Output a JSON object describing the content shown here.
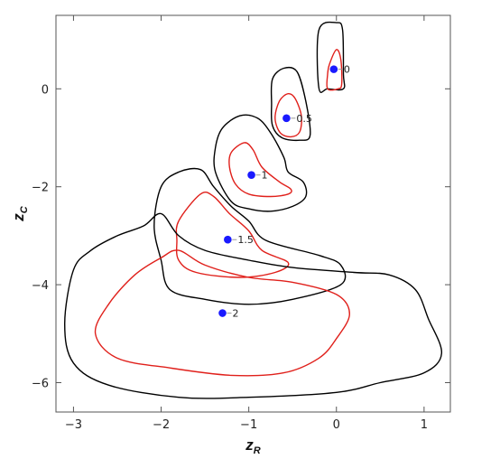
{
  "chart_data": {
    "type": "contour-scatter",
    "xlabel": {
      "main": "z",
      "sub": "R"
    },
    "ylabel": {
      "main": "z",
      "sub": "C"
    },
    "xlim": [
      -3.2,
      1.3
    ],
    "ylim": [
      -6.6,
      1.5
    ],
    "xticks": [
      -3,
      -2,
      -1,
      0,
      1
    ],
    "yticks": [
      -6,
      -4,
      -2,
      0
    ],
    "colors": {
      "outer": "#000000",
      "inner": "#e0201b",
      "point": "#1a1aff"
    },
    "points": [
      {
        "label": "0",
        "x": -0.03,
        "y": 0.4
      },
      {
        "label": "0.5",
        "x": -0.57,
        "y": -0.6
      },
      {
        "label": "1",
        "x": -0.97,
        "y": -1.76
      },
      {
        "label": "1.5",
        "x": -1.24,
        "y": -3.08
      },
      {
        "label": "2",
        "x": -1.3,
        "y": -4.58
      }
    ],
    "contours": [
      {
        "level": "outer",
        "group": "0",
        "points": [
          [
            -0.2,
            1.2
          ],
          [
            0.0,
            1.35
          ],
          [
            0.07,
            1.2
          ],
          [
            0.08,
            0.3
          ],
          [
            0.08,
            0.0
          ],
          [
            -0.1,
            0.0
          ],
          [
            -0.2,
            0.02
          ],
          [
            -0.2,
            1.2
          ]
        ]
      },
      {
        "level": "inner",
        "group": "0",
        "points": [
          [
            -0.08,
            0.5
          ],
          [
            0.0,
            0.8
          ],
          [
            0.05,
            0.6
          ],
          [
            0.06,
            0.1
          ],
          [
            0.02,
            0.0
          ],
          [
            -0.1,
            0.0
          ],
          [
            -0.1,
            0.3
          ],
          [
            -0.08,
            0.5
          ]
        ]
      },
      {
        "level": "outer",
        "group": "0.5",
        "points": [
          [
            -0.73,
            0.2
          ],
          [
            -0.6,
            0.42
          ],
          [
            -0.45,
            0.35
          ],
          [
            -0.35,
            -0.25
          ],
          [
            -0.3,
            -0.95
          ],
          [
            -0.42,
            -1.05
          ],
          [
            -0.62,
            -1.0
          ],
          [
            -0.73,
            -0.75
          ],
          [
            -0.74,
            -0.3
          ],
          [
            -0.73,
            0.2
          ]
        ]
      },
      {
        "level": "inner",
        "group": "0.5",
        "points": [
          [
            -0.65,
            -0.25
          ],
          [
            -0.55,
            -0.1
          ],
          [
            -0.47,
            -0.2
          ],
          [
            -0.4,
            -0.55
          ],
          [
            -0.42,
            -0.88
          ],
          [
            -0.52,
            -0.98
          ],
          [
            -0.64,
            -0.9
          ],
          [
            -0.7,
            -0.6
          ],
          [
            -0.65,
            -0.25
          ]
        ]
      },
      {
        "level": "outer",
        "group": "1",
        "points": [
          [
            -1.3,
            -0.8
          ],
          [
            -1.1,
            -0.55
          ],
          [
            -0.9,
            -0.6
          ],
          [
            -0.75,
            -0.9
          ],
          [
            -0.6,
            -1.4
          ],
          [
            -0.55,
            -1.7
          ],
          [
            -0.38,
            -1.9
          ],
          [
            -0.35,
            -2.2
          ],
          [
            -0.5,
            -2.4
          ],
          [
            -0.75,
            -2.5
          ],
          [
            -1.0,
            -2.45
          ],
          [
            -1.2,
            -2.3
          ],
          [
            -1.38,
            -1.7
          ],
          [
            -1.38,
            -1.2
          ],
          [
            -1.3,
            -0.8
          ]
        ]
      },
      {
        "level": "inner",
        "group": "1",
        "points": [
          [
            -1.2,
            -1.3
          ],
          [
            -1.05,
            -1.1
          ],
          [
            -0.95,
            -1.25
          ],
          [
            -0.85,
            -1.6
          ],
          [
            -0.65,
            -1.9
          ],
          [
            -0.52,
            -2.05
          ],
          [
            -0.55,
            -2.15
          ],
          [
            -0.75,
            -2.2
          ],
          [
            -1.0,
            -2.15
          ],
          [
            -1.15,
            -1.95
          ],
          [
            -1.22,
            -1.6
          ],
          [
            -1.2,
            -1.3
          ]
        ]
      },
      {
        "level": "outer",
        "group": "1.5",
        "points": [
          [
            -2.0,
            -2.0
          ],
          [
            -1.8,
            -1.7
          ],
          [
            -1.55,
            -1.65
          ],
          [
            -1.4,
            -2.0
          ],
          [
            -1.2,
            -2.4
          ],
          [
            -1.0,
            -2.7
          ],
          [
            -0.8,
            -3.1
          ],
          [
            -0.2,
            -3.4
          ],
          [
            0.05,
            -3.6
          ],
          [
            0.05,
            -4.0
          ],
          [
            -0.5,
            -4.3
          ],
          [
            -1.0,
            -4.4
          ],
          [
            -1.5,
            -4.3
          ],
          [
            -1.9,
            -4.1
          ],
          [
            -2.0,
            -3.5
          ],
          [
            -2.08,
            -2.8
          ],
          [
            -2.0,
            -2.0
          ]
        ]
      },
      {
        "level": "inner",
        "group": "1.5",
        "points": [
          [
            -1.8,
            -2.7
          ],
          [
            -1.55,
            -2.15
          ],
          [
            -1.4,
            -2.2
          ],
          [
            -1.22,
            -2.55
          ],
          [
            -1.0,
            -2.9
          ],
          [
            -0.85,
            -3.3
          ],
          [
            -0.55,
            -3.55
          ],
          [
            -0.7,
            -3.75
          ],
          [
            -1.1,
            -3.85
          ],
          [
            -1.6,
            -3.75
          ],
          [
            -1.8,
            -3.5
          ],
          [
            -1.82,
            -3.1
          ],
          [
            -1.8,
            -2.7
          ]
        ]
      },
      {
        "level": "outer",
        "group": "2",
        "points": [
          [
            -2.5,
            -3.0
          ],
          [
            -2.2,
            -2.8
          ],
          [
            -2.0,
            -2.55
          ],
          [
            -1.8,
            -3.0
          ],
          [
            -1.5,
            -3.3
          ],
          [
            -1.0,
            -3.5
          ],
          [
            -0.5,
            -3.65
          ],
          [
            0.2,
            -3.75
          ],
          [
            0.6,
            -3.8
          ],
          [
            0.9,
            -4.1
          ],
          [
            1.05,
            -4.7
          ],
          [
            1.2,
            -5.4
          ],
          [
            1.0,
            -5.8
          ],
          [
            0.5,
            -6.0
          ],
          [
            0.0,
            -6.2
          ],
          [
            -1.0,
            -6.3
          ],
          [
            -1.8,
            -6.3
          ],
          [
            -2.6,
            -6.05
          ],
          [
            -3.0,
            -5.6
          ],
          [
            -3.1,
            -4.8
          ],
          [
            -3.0,
            -3.7
          ],
          [
            -2.8,
            -3.3
          ],
          [
            -2.5,
            -3.0
          ]
        ]
      },
      {
        "level": "inner",
        "group": "2",
        "points": [
          [
            -2.0,
            -3.45
          ],
          [
            -1.8,
            -3.3
          ],
          [
            -1.5,
            -3.6
          ],
          [
            -1.0,
            -3.85
          ],
          [
            -0.5,
            -3.95
          ],
          [
            0.0,
            -4.2
          ],
          [
            0.15,
            -4.6
          ],
          [
            0.0,
            -5.1
          ],
          [
            -0.2,
            -5.5
          ],
          [
            -0.6,
            -5.8
          ],
          [
            -1.2,
            -5.85
          ],
          [
            -1.9,
            -5.7
          ],
          [
            -2.5,
            -5.5
          ],
          [
            -2.75,
            -5.0
          ],
          [
            -2.6,
            -4.4
          ],
          [
            -2.3,
            -3.8
          ],
          [
            -2.0,
            -3.45
          ]
        ]
      }
    ]
  }
}
